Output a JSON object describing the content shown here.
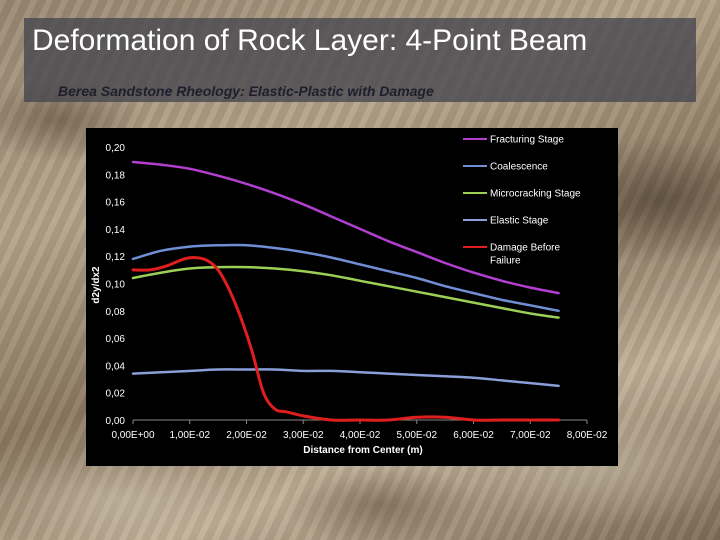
{
  "slide": {
    "title": "Deformation of Rock Layer: 4-Point Beam",
    "subtitle": "Berea Sandstone Rheology: Elastic-Plastic with Damage"
  },
  "chart_data": {
    "type": "line",
    "title": "",
    "xlabel": "Distance from Center (m)",
    "ylabel": "d2y/dx2",
    "xlim": [
      0,
      0.08
    ],
    "ylim": [
      0,
      0.2
    ],
    "xticks": [
      0,
      0.01,
      0.02,
      0.03,
      0.04,
      0.05,
      0.06,
      0.07,
      0.08
    ],
    "xtick_labels": [
      "0,00E+00",
      "1,00E-02",
      "2,00E-02",
      "3,00E-02",
      "4,00E-02",
      "5,00E-02",
      "6,00E-02",
      "7,00E-02",
      "8,00E-02"
    ],
    "yticks": [
      0,
      0.02,
      0.04,
      0.06,
      0.08,
      0.1,
      0.12,
      0.14,
      0.16,
      0.18,
      0.2
    ],
    "ytick_labels": [
      "0,00",
      "0,02",
      "0,04",
      "0,06",
      "0,08",
      "0,10",
      "0,12",
      "0,14",
      "0,16",
      "0,18",
      "0,20"
    ],
    "grid": false,
    "legend_position": "right",
    "background": "#000000",
    "series": [
      {
        "name": "Fracturing Stage",
        "color": "#b23fd0",
        "x": [
          0,
          0.005,
          0.01,
          0.015,
          0.02,
          0.025,
          0.03,
          0.035,
          0.04,
          0.045,
          0.05,
          0.055,
          0.06,
          0.065,
          0.07,
          0.075
        ],
        "y": [
          0.189,
          0.187,
          0.184,
          0.179,
          0.173,
          0.166,
          0.158,
          0.149,
          0.14,
          0.131,
          0.123,
          0.115,
          0.108,
          0.102,
          0.097,
          0.093
        ]
      },
      {
        "name": "Coalescence",
        "color": "#6f8fd4",
        "x": [
          0,
          0.005,
          0.01,
          0.015,
          0.02,
          0.025,
          0.03,
          0.035,
          0.04,
          0.045,
          0.05,
          0.055,
          0.06,
          0.065,
          0.07,
          0.075
        ],
        "y": [
          0.118,
          0.124,
          0.127,
          0.128,
          0.128,
          0.126,
          0.123,
          0.119,
          0.114,
          0.109,
          0.104,
          0.098,
          0.093,
          0.088,
          0.084,
          0.08
        ]
      },
      {
        "name": "Microcracking Stage",
        "color": "#9ccf55",
        "x": [
          0,
          0.005,
          0.01,
          0.015,
          0.02,
          0.025,
          0.03,
          0.035,
          0.04,
          0.045,
          0.05,
          0.055,
          0.06,
          0.065,
          0.07,
          0.075
        ],
        "y": [
          0.104,
          0.108,
          0.111,
          0.112,
          0.112,
          0.111,
          0.109,
          0.106,
          0.102,
          0.098,
          0.094,
          0.09,
          0.086,
          0.082,
          0.078,
          0.075
        ]
      },
      {
        "name": "Elastic Stage",
        "color": "#8a9fd8",
        "x": [
          0,
          0.005,
          0.01,
          0.015,
          0.02,
          0.025,
          0.03,
          0.035,
          0.04,
          0.045,
          0.05,
          0.055,
          0.06,
          0.065,
          0.07,
          0.075
        ],
        "y": [
          0.034,
          0.035,
          0.036,
          0.037,
          0.037,
          0.037,
          0.036,
          0.036,
          0.035,
          0.034,
          0.033,
          0.032,
          0.031,
          0.029,
          0.027,
          0.025
        ]
      },
      {
        "name": "Damage Before Failure",
        "color": "#e01e1e",
        "x": [
          0,
          0.003,
          0.006,
          0.009,
          0.011,
          0.013,
          0.015,
          0.017,
          0.019,
          0.021,
          0.023,
          0.025,
          0.027,
          0.03,
          0.035,
          0.04,
          0.045,
          0.05,
          0.055,
          0.06,
          0.065,
          0.07,
          0.075
        ],
        "y": [
          0.11,
          0.11,
          0.113,
          0.118,
          0.119,
          0.117,
          0.11,
          0.095,
          0.075,
          0.05,
          0.02,
          0.008,
          0.006,
          0.003,
          0.0,
          0.0,
          0.0,
          0.002,
          0.002,
          0.0,
          0.0,
          0.0,
          0.0
        ]
      }
    ]
  }
}
